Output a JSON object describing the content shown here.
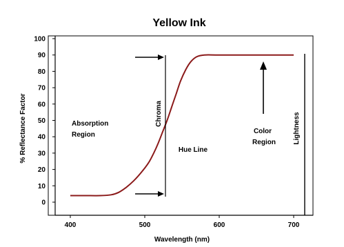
{
  "chart_data": {
    "type": "line",
    "title": "Yellow Ink",
    "xlabel": "Wavelength (nm)",
    "ylabel": "% Reflectance Factor",
    "xlim": [
      370,
      730
    ],
    "ylim": [
      -5,
      100
    ],
    "x_ticks": [
      400,
      500,
      600,
      700
    ],
    "y_ticks": [
      0,
      10,
      20,
      30,
      40,
      50,
      60,
      70,
      80,
      90,
      100
    ],
    "grid": false,
    "line_color": "#8b1a1a",
    "series": [
      {
        "x": [
          400,
          420,
          440,
          455,
          465,
          475,
          485,
          495,
          505,
          512,
          518,
          524,
          530,
          536,
          542,
          548,
          555,
          562,
          570,
          580,
          600,
          650,
          700
        ],
        "y": [
          4,
          4,
          4,
          4.5,
          6,
          9,
          13,
          18,
          24,
          30,
          36,
          43,
          50,
          58,
          66,
          74,
          81,
          86,
          89,
          90,
          90,
          90,
          90
        ]
      }
    ],
    "annotations": {
      "absorption_line1": "Absorption",
      "absorption_line2": "Region",
      "hue_line": "Hue Line",
      "color_region_line1": "Color",
      "color_region_line2": "Region",
      "chroma": "Chroma",
      "lightness": "Lightness"
    }
  }
}
